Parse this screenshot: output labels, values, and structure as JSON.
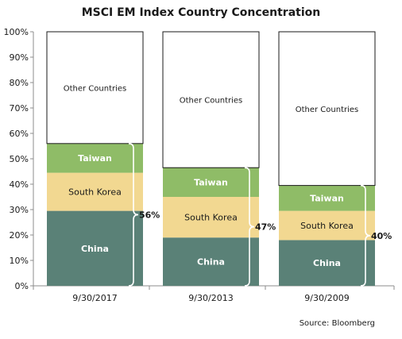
{
  "chart_data": {
    "type": "bar",
    "stacked": true,
    "title": "MSCI EM Index Country Concentration",
    "categories": [
      "9/30/2017",
      "9/30/2013",
      "9/30/2009"
    ],
    "series": [
      {
        "name": "China",
        "values": [
          29.5,
          19,
          18
        ],
        "color": "#5a8177",
        "label_color": "#ffffff"
      },
      {
        "name": "South Korea",
        "values": [
          15,
          16,
          11.5
        ],
        "color": "#f2d891",
        "label_color": "#1a1a1a"
      },
      {
        "name": "Taiwan",
        "values": [
          11.5,
          11.5,
          10
        ],
        "color": "#8fbc67",
        "label_color": "#ffffff"
      },
      {
        "name": "Other Countries",
        "values": [
          44,
          53.5,
          60.5
        ],
        "color": "#ffffff",
        "label_color": "#1a1a1a"
      }
    ],
    "concentration_labels": [
      "56%",
      "47%",
      "40%"
    ],
    "yticks": [
      "0%",
      "10%",
      "20%",
      "30%",
      "40%",
      "50%",
      "60%",
      "70%",
      "80%",
      "90%",
      "100%"
    ],
    "ylim": [
      0,
      100
    ],
    "xlabel": "",
    "ylabel": "",
    "grid": false,
    "legend": "none"
  },
  "source": "Source: Bloomberg"
}
